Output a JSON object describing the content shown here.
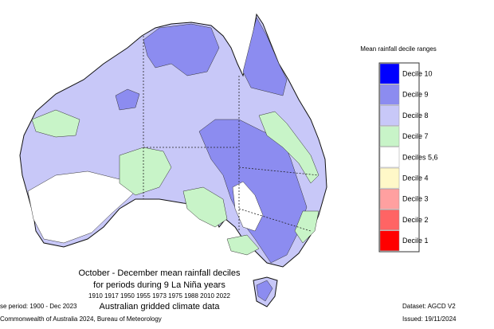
{
  "legend": {
    "title": "Mean rainfall decile ranges",
    "items": [
      {
        "label": "Decile 10",
        "color": "#0000ff"
      },
      {
        "label": "Decile 9",
        "color": "#8c8cf0"
      },
      {
        "label": "Decile 8",
        "color": "#c8c8f8"
      },
      {
        "label": "Decile 7",
        "color": "#c8f4c8"
      },
      {
        "label": "Deciles 5,6",
        "color": "#ffffff"
      },
      {
        "label": "Decile 4",
        "color": "#fff8c8"
      },
      {
        "label": "Decile 3",
        "color": "#ffa0a0"
      },
      {
        "label": "Decile 2",
        "color": "#ff6464"
      },
      {
        "label": "Decile 1",
        "color": "#ff0000"
      }
    ]
  },
  "caption": [
    "October - December mean rainfall deciles",
    "for periods during 9 La Niña years",
    "1910 1917 1950 1955 1973 1975 1988 2010 2022",
    "Australian gridded climate data"
  ],
  "footer": {
    "base_period": "se period: 1900 - Dec 2023",
    "copyright": "Commonwealth of Australia 2024, Bureau of Meteorology",
    "dataset": "Dataset: AGCD V2",
    "issued": "Issued: 19/11/2024"
  }
}
